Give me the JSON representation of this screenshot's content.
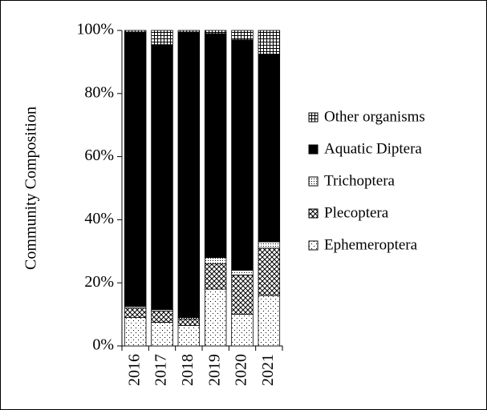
{
  "chart_data": {
    "type": "stacked_bar",
    "ylabel": "Community Composition",
    "categories": [
      "2016",
      "2017",
      "2018",
      "2019",
      "2020",
      "2021"
    ],
    "series": [
      {
        "name": "Ephemeroptera",
        "color": "#000000",
        "values": [
          9,
          7.5,
          6.5,
          18,
          10,
          16
        ]
      },
      {
        "name": "Plecoptera",
        "color": "#000000",
        "values": [
          3,
          3.5,
          2,
          8,
          12.5,
          15
        ]
      },
      {
        "name": "Trichoptera",
        "color": "#000000",
        "values": [
          0.5,
          0.5,
          0.5,
          2,
          1.5,
          2
        ]
      },
      {
        "name": "Aquatic Diptera",
        "color": "#000000",
        "values": [
          87,
          84,
          90.5,
          71,
          73,
          59.5
        ]
      },
      {
        "name": "Other organisms",
        "color": "#000000",
        "values": [
          0.5,
          4.5,
          0.5,
          1,
          3,
          7.5
        ]
      }
    ],
    "ylim": [
      0,
      100
    ],
    "yticks": [
      {
        "value": 0,
        "label": "0%"
      },
      {
        "value": 20,
        "label": "20%"
      },
      {
        "value": 40,
        "label": "40%"
      },
      {
        "value": 60,
        "label": "60%"
      },
      {
        "value": 80,
        "label": "80%"
      },
      {
        "value": 100,
        "label": "100%"
      }
    ],
    "legend": "right"
  }
}
